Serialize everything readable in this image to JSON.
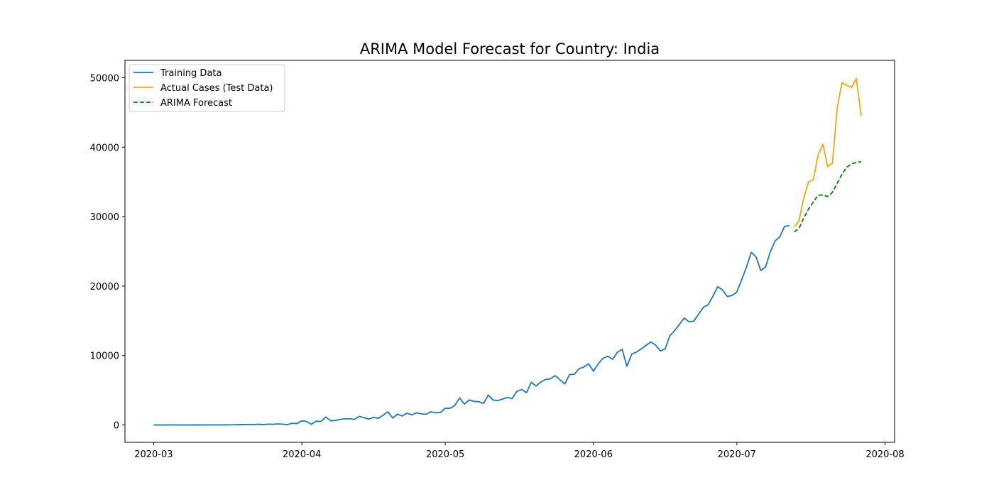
{
  "chart_data": {
    "type": "line",
    "title": "ARIMA Model Forecast for Country: India",
    "xlabel": "",
    "ylabel": "",
    "x_axis_type": "date",
    "xlim": [
      "2020-02-24",
      "2020-08-03"
    ],
    "ylim": [
      -2500,
      52500
    ],
    "x_ticks": [
      "2020-03-01",
      "2020-04-01",
      "2020-05-01",
      "2020-06-01",
      "2020-07-01",
      "2020-08-01"
    ],
    "x_tick_labels": [
      "2020-03",
      "2020-04",
      "2020-05",
      "2020-06",
      "2020-07",
      "2020-08"
    ],
    "y_ticks": [
      0,
      10000,
      20000,
      30000,
      40000,
      50000
    ],
    "y_tick_labels": [
      "0",
      "10000",
      "20000",
      "30000",
      "40000",
      "50000"
    ],
    "grid": false,
    "legend_position": "top-left",
    "series": [
      {
        "name": "Training Data",
        "color": "#1f77b4",
        "style": "solid",
        "points": [
          [
            "2020-03-01",
            0
          ],
          [
            "2020-03-02",
            0
          ],
          [
            "2020-03-03",
            0
          ],
          [
            "2020-03-04",
            20
          ],
          [
            "2020-03-05",
            10
          ],
          [
            "2020-03-06",
            0
          ],
          [
            "2020-03-07",
            0
          ],
          [
            "2020-03-08",
            0
          ],
          [
            "2020-03-09",
            0
          ],
          [
            "2020-03-10",
            10
          ],
          [
            "2020-03-11",
            0
          ],
          [
            "2020-03-12",
            10
          ],
          [
            "2020-03-13",
            10
          ],
          [
            "2020-03-14",
            20
          ],
          [
            "2020-03-15",
            10
          ],
          [
            "2020-03-16",
            10
          ],
          [
            "2020-03-17",
            20
          ],
          [
            "2020-03-18",
            30
          ],
          [
            "2020-03-19",
            50
          ],
          [
            "2020-03-20",
            60
          ],
          [
            "2020-03-21",
            80
          ],
          [
            "2020-03-22",
            70
          ],
          [
            "2020-03-23",
            100
          ],
          [
            "2020-03-24",
            50
          ],
          [
            "2020-03-25",
            120
          ],
          [
            "2020-03-26",
            90
          ],
          [
            "2020-03-27",
            160
          ],
          [
            "2020-03-28",
            110
          ],
          [
            "2020-03-29",
            50
          ],
          [
            "2020-03-30",
            250
          ],
          [
            "2020-03-31",
            200
          ],
          [
            "2020-04-01",
            600
          ],
          [
            "2020-04-02",
            500
          ],
          [
            "2020-04-03",
            100
          ],
          [
            "2020-04-04",
            550
          ],
          [
            "2020-04-05",
            500
          ],
          [
            "2020-04-06",
            1150
          ],
          [
            "2020-04-07",
            600
          ],
          [
            "2020-04-08",
            650
          ],
          [
            "2020-04-09",
            800
          ],
          [
            "2020-04-10",
            900
          ],
          [
            "2020-04-11",
            900
          ],
          [
            "2020-04-12",
            800
          ],
          [
            "2020-04-13",
            1250
          ],
          [
            "2020-04-14",
            1050
          ],
          [
            "2020-04-15",
            850
          ],
          [
            "2020-04-16",
            1100
          ],
          [
            "2020-04-17",
            950
          ],
          [
            "2020-04-18",
            1400
          ],
          [
            "2020-04-19",
            1900
          ],
          [
            "2020-04-20",
            1000
          ],
          [
            "2020-04-21",
            1550
          ],
          [
            "2020-04-22",
            1300
          ],
          [
            "2020-04-23",
            1700
          ],
          [
            "2020-04-24",
            1450
          ],
          [
            "2020-04-25",
            1750
          ],
          [
            "2020-04-26",
            1600
          ],
          [
            "2020-04-27",
            1550
          ],
          [
            "2020-04-28",
            1900
          ],
          [
            "2020-04-29",
            1750
          ],
          [
            "2020-04-30",
            1800
          ],
          [
            "2020-05-01",
            2400
          ],
          [
            "2020-05-02",
            2400
          ],
          [
            "2020-05-03",
            2800
          ],
          [
            "2020-05-04",
            3900
          ],
          [
            "2020-05-05",
            3000
          ],
          [
            "2020-05-06",
            3600
          ],
          [
            "2020-05-07",
            3400
          ],
          [
            "2020-05-08",
            3350
          ],
          [
            "2020-05-09",
            3100
          ],
          [
            "2020-05-10",
            4300
          ],
          [
            "2020-05-11",
            3600
          ],
          [
            "2020-05-12",
            3500
          ],
          [
            "2020-05-13",
            3750
          ],
          [
            "2020-05-14",
            3950
          ],
          [
            "2020-05-15",
            3800
          ],
          [
            "2020-05-16",
            4850
          ],
          [
            "2020-05-17",
            5100
          ],
          [
            "2020-05-18",
            4650
          ],
          [
            "2020-05-19",
            6150
          ],
          [
            "2020-05-20",
            5600
          ],
          [
            "2020-05-21",
            6200
          ],
          [
            "2020-05-22",
            6550
          ],
          [
            "2020-05-23",
            6650
          ],
          [
            "2020-05-24",
            7100
          ],
          [
            "2020-05-25",
            6500
          ],
          [
            "2020-05-26",
            5900
          ],
          [
            "2020-05-27",
            7250
          ],
          [
            "2020-05-28",
            7300
          ],
          [
            "2020-05-29",
            8100
          ],
          [
            "2020-05-30",
            8350
          ],
          [
            "2020-05-31",
            8800
          ],
          [
            "2020-06-01",
            7750
          ],
          [
            "2020-06-02",
            8800
          ],
          [
            "2020-06-03",
            9600
          ],
          [
            "2020-06-04",
            9900
          ],
          [
            "2020-06-05",
            9450
          ],
          [
            "2020-06-06",
            10450
          ],
          [
            "2020-06-07",
            10900
          ],
          [
            "2020-06-08",
            8450
          ],
          [
            "2020-06-09",
            10200
          ],
          [
            "2020-06-10",
            10500
          ],
          [
            "2020-06-11",
            10950
          ],
          [
            "2020-06-12",
            11450
          ],
          [
            "2020-06-13",
            11950
          ],
          [
            "2020-06-14",
            11500
          ],
          [
            "2020-06-15",
            10650
          ],
          [
            "2020-06-16",
            10950
          ],
          [
            "2020-06-17",
            12850
          ],
          [
            "2020-06-18",
            13600
          ],
          [
            "2020-06-19",
            14500
          ],
          [
            "2020-06-20",
            15400
          ],
          [
            "2020-06-21",
            14850
          ],
          [
            "2020-06-22",
            14950
          ],
          [
            "2020-06-23",
            15950
          ],
          [
            "2020-06-24",
            16950
          ],
          [
            "2020-06-25",
            17300
          ],
          [
            "2020-06-26",
            18550
          ],
          [
            "2020-06-27",
            19900
          ],
          [
            "2020-06-28",
            19450
          ],
          [
            "2020-06-29",
            18500
          ],
          [
            "2020-06-30",
            18650
          ],
          [
            "2020-07-01",
            19150
          ],
          [
            "2020-07-02",
            20900
          ],
          [
            "2020-07-03",
            22700
          ],
          [
            "2020-07-04",
            24850
          ],
          [
            "2020-07-05",
            24250
          ],
          [
            "2020-07-06",
            22250
          ],
          [
            "2020-07-07",
            22750
          ],
          [
            "2020-07-08",
            24900
          ],
          [
            "2020-07-09",
            26500
          ],
          [
            "2020-07-10",
            27100
          ],
          [
            "2020-07-11",
            28600
          ],
          [
            "2020-07-12",
            28700
          ]
        ]
      },
      {
        "name": "Actual Cases (Test Data)",
        "color": "#ffa500",
        "style": "solid",
        "points": [
          [
            "2020-07-13",
            28500
          ],
          [
            "2020-07-14",
            29400
          ],
          [
            "2020-07-15",
            32700
          ],
          [
            "2020-07-16",
            35000
          ],
          [
            "2020-07-17",
            35300
          ],
          [
            "2020-07-18",
            38900
          ],
          [
            "2020-07-19",
            40400
          ],
          [
            "2020-07-20",
            37200
          ],
          [
            "2020-07-21",
            37700
          ],
          [
            "2020-07-22",
            45700
          ],
          [
            "2020-07-23",
            49300
          ],
          [
            "2020-07-24",
            48900
          ],
          [
            "2020-07-25",
            48600
          ],
          [
            "2020-07-26",
            49900
          ],
          [
            "2020-07-27",
            44500
          ]
        ]
      },
      {
        "name": "ARIMA Forecast",
        "color": "#008000",
        "style": "dashed",
        "points": [
          [
            "2020-07-13",
            27800
          ],
          [
            "2020-07-14",
            28300
          ],
          [
            "2020-07-15",
            29800
          ],
          [
            "2020-07-16",
            31100
          ],
          [
            "2020-07-17",
            32100
          ],
          [
            "2020-07-18",
            33100
          ],
          [
            "2020-07-19",
            33100
          ],
          [
            "2020-07-20",
            32900
          ],
          [
            "2020-07-21",
            33500
          ],
          [
            "2020-07-22",
            34800
          ],
          [
            "2020-07-23",
            36100
          ],
          [
            "2020-07-24",
            37100
          ],
          [
            "2020-07-25",
            37600
          ],
          [
            "2020-07-26",
            37800
          ],
          [
            "2020-07-27",
            37900
          ]
        ]
      }
    ]
  }
}
